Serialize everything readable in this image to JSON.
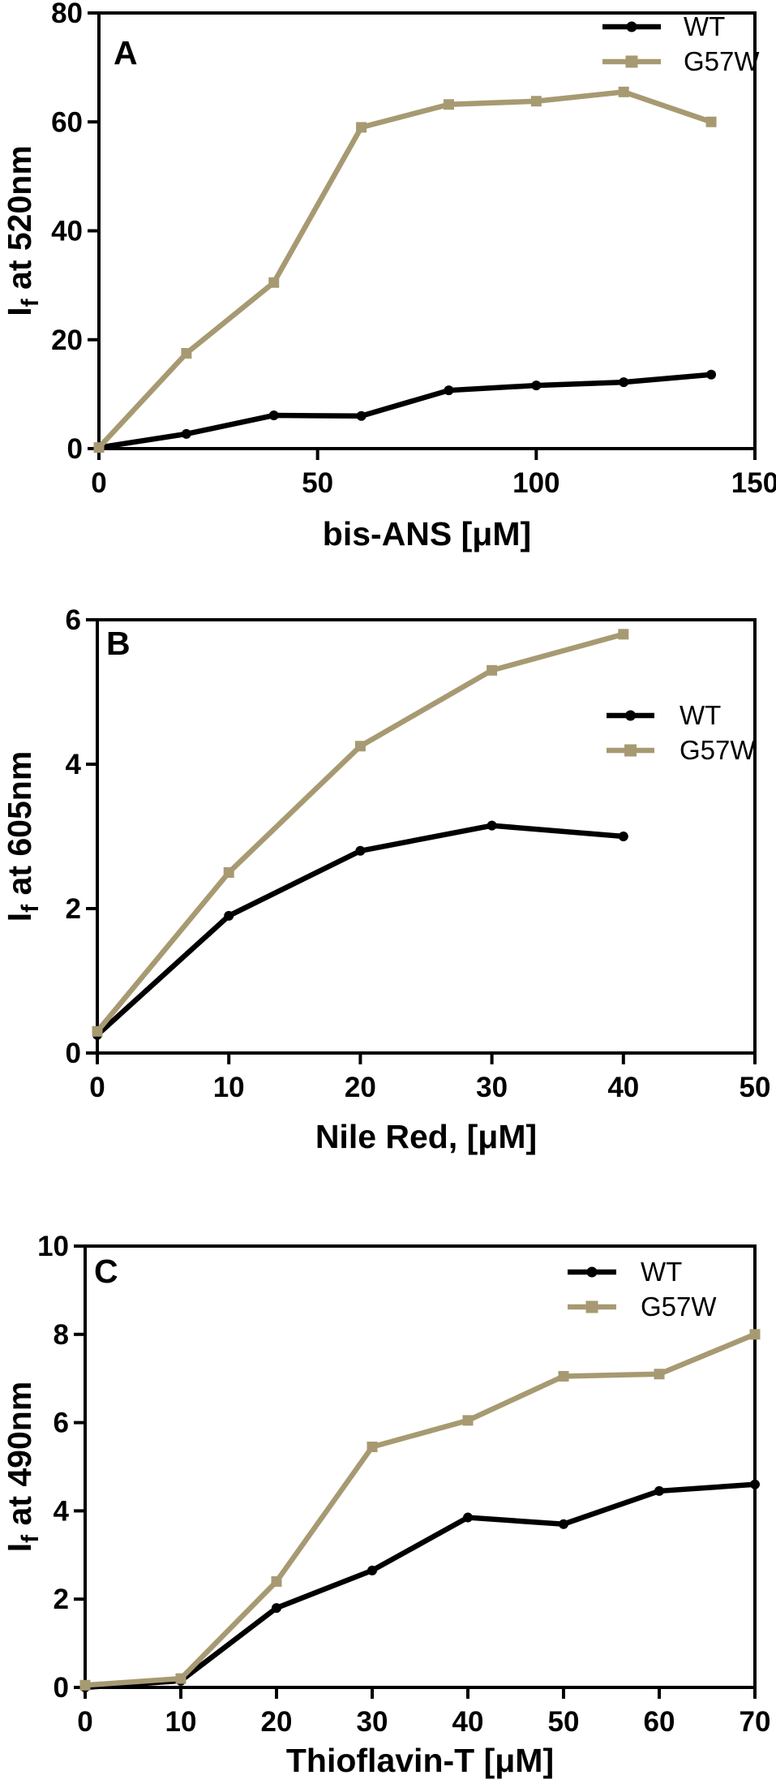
{
  "figure": {
    "background": "#ffffff",
    "text_color": "#000000",
    "series_colors": {
      "WT": "#000000",
      "G57W": "#a79a72"
    },
    "legend_entries": [
      "WT",
      "G57W"
    ]
  },
  "chart_data": [
    {
      "type": "line",
      "panel_label": "A",
      "xlabel": "bis-ANS [μM]",
      "ylabel": {
        "pre": "I",
        "sub": "f",
        "rest": " at 520nm"
      },
      "xlim": [
        0,
        150
      ],
      "ylim": [
        0,
        80
      ],
      "xticks": [
        0,
        50,
        100,
        150
      ],
      "yticks": [
        0,
        20,
        40,
        60,
        80
      ],
      "grid": false,
      "legend_position": "top-right",
      "x": [
        0,
        20,
        40,
        60,
        80,
        100,
        120,
        140
      ],
      "series": [
        {
          "name": "WT",
          "marker": "circle",
          "color": "#000000",
          "values": [
            0.2,
            2.7,
            6.1,
            6.0,
            10.7,
            11.6,
            12.2,
            13.6
          ]
        },
        {
          "name": "G57W",
          "marker": "square",
          "color": "#a79a72",
          "values": [
            0.2,
            17.5,
            30.5,
            59.0,
            63.2,
            63.8,
            65.5,
            60.0
          ]
        }
      ]
    },
    {
      "type": "line",
      "panel_label": "B",
      "xlabel": "Nile Red, [μM]",
      "ylabel": {
        "pre": "I",
        "sub": "f",
        "rest": " at 605nm"
      },
      "xlim": [
        0,
        50
      ],
      "ylim": [
        0,
        6
      ],
      "xticks": [
        0,
        10,
        20,
        30,
        40,
        50
      ],
      "yticks": [
        0,
        2,
        4,
        6
      ],
      "grid": false,
      "legend_position": "middle-right",
      "x": [
        0,
        10,
        20,
        30,
        40
      ],
      "series": [
        {
          "name": "WT",
          "marker": "circle",
          "color": "#000000",
          "values": [
            0.25,
            1.9,
            2.8,
            3.15,
            3.0
          ]
        },
        {
          "name": "G57W",
          "marker": "square",
          "color": "#a79a72",
          "values": [
            0.3,
            2.5,
            4.25,
            5.3,
            5.8
          ]
        }
      ]
    },
    {
      "type": "line",
      "panel_label": "C",
      "xlabel": "Thioflavin-T [μM]",
      "ylabel": {
        "pre": "I",
        "sub": "f",
        "rest": " at 490nm"
      },
      "xlim": [
        0,
        70
      ],
      "ylim": [
        0,
        10
      ],
      "xticks": [
        0,
        10,
        20,
        30,
        40,
        50,
        60,
        70
      ],
      "yticks": [
        0,
        2,
        4,
        6,
        8,
        10
      ],
      "grid": false,
      "legend_position": "top-right",
      "x": [
        0,
        10,
        20,
        30,
        40,
        50,
        60,
        70
      ],
      "series": [
        {
          "name": "WT",
          "marker": "circle",
          "color": "#000000",
          "values": [
            0.0,
            0.15,
            1.8,
            2.65,
            3.85,
            3.7,
            4.45,
            4.6
          ]
        },
        {
          "name": "G57W",
          "marker": "square",
          "color": "#a79a72",
          "values": [
            0.05,
            0.2,
            2.4,
            5.45,
            6.05,
            7.05,
            7.1,
            8.0
          ]
        }
      ]
    }
  ]
}
